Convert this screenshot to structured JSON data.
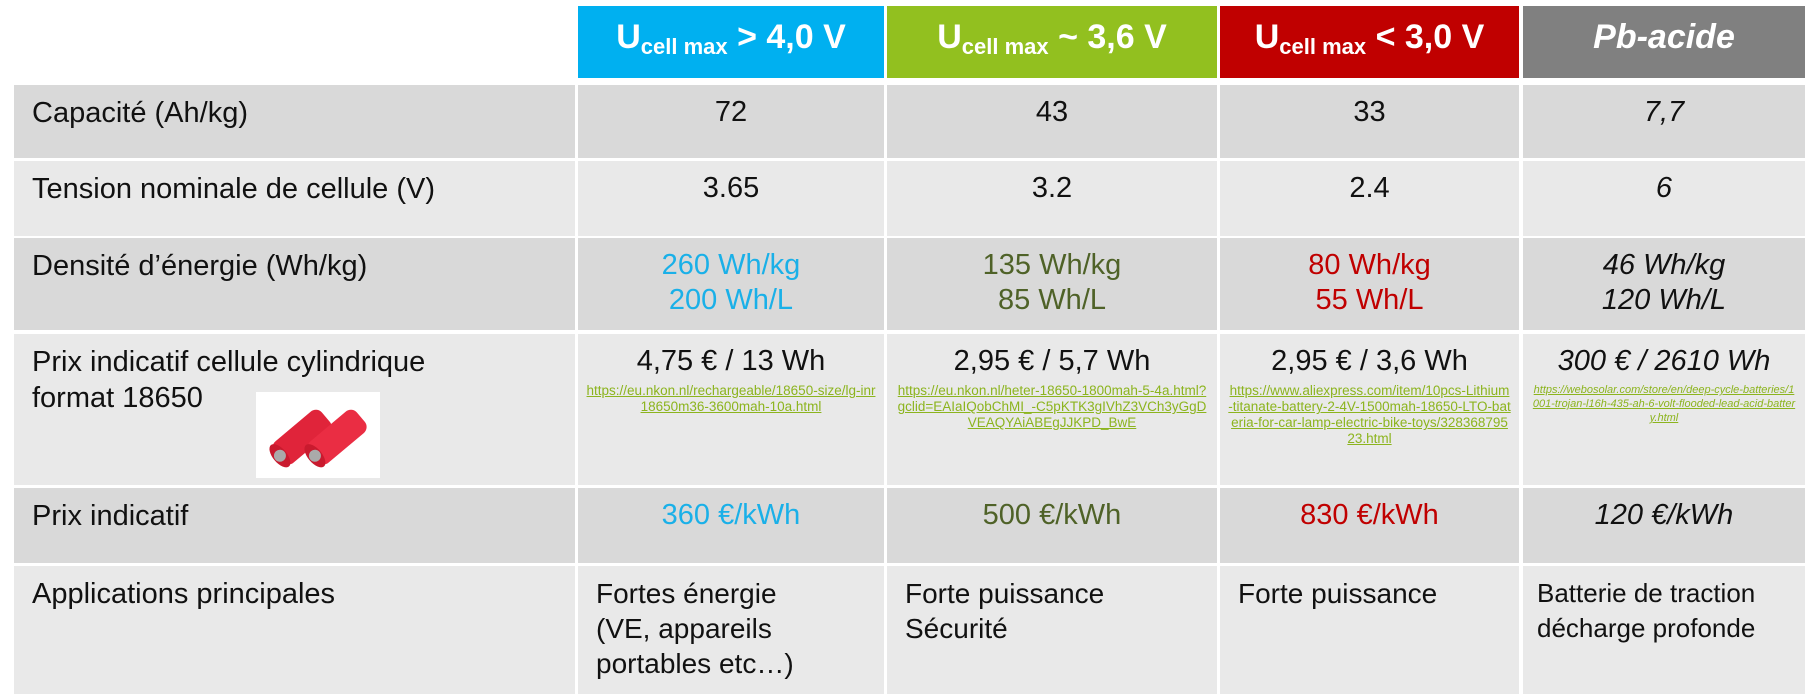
{
  "header": {
    "columns": [
      {
        "main": "U",
        "sub": "cell max",
        "rest": "> 4,0 V"
      },
      {
        "main": "U",
        "sub": "cell max",
        "rest": "~ 3,6 V"
      },
      {
        "main": "U",
        "sub": "cell max",
        "rest": "< 3,0 V"
      },
      {
        "text": "Pb-acide"
      }
    ]
  },
  "rows": [
    {
      "label": "Capacité (Ah/kg)",
      "cells": [
        [
          "72"
        ],
        [
          "43"
        ],
        [
          "33"
        ],
        [
          "7,7"
        ]
      ]
    },
    {
      "label": "Tension nominale de cellule (V)",
      "cells": [
        [
          "3.65"
        ],
        [
          "3.2"
        ],
        [
          "2.4"
        ],
        [
          "6"
        ]
      ]
    },
    {
      "label": "Densité d’énergie (Wh/kg)",
      "cells": [
        [
          "260 Wh/kg",
          "200 Wh/L"
        ],
        [
          "135 Wh/kg",
          "85 Wh/L"
        ],
        [
          "80 Wh/kg",
          "55 Wh/L"
        ],
        [
          "46 Wh/kg",
          "120 Wh/L"
        ]
      ]
    },
    {
      "label": [
        "Prix indicatif cellule cylindrique",
        "format 18650"
      ],
      "cells": [
        {
          "price": "4,75 €  / 13 Wh",
          "link": "https://eu.nkon.nl/rechargeable/18650-size/lg-inr18650m36-3600mah-10a.html"
        },
        {
          "price": "2,95 €  / 5,7 Wh",
          "link": "https://eu.nkon.nl/heter-18650-1800mah-5-4a.html?gclid=EAIaIQobChMI_-C5pKTK3gIVhZ3VCh3yGgDVEAQYAiABEgJJKPD_BwE"
        },
        {
          "price": "2,95 € / 3,6 Wh",
          "link": "https://www.aliexpress.com/item/10pcs-Lithium-titanate-battery-2-4V-1500mah-18650-LTO-bateria-for-car-lamp-electric-bike-toys/32836879523.html"
        },
        {
          "price": "300 € / 2610 Wh",
          "link": "https://webosolar.com/store/en/deep-cycle-batteries/1001-trojan-l16h-435-ah-6-volt-flooded-lead-acid-battery.html"
        }
      ]
    },
    {
      "label": "Prix indicatif",
      "cells": [
        [
          "360 €/kWh"
        ],
        [
          "500 €/kWh"
        ],
        [
          "830 €/kWh"
        ],
        [
          "120 €/kWh"
        ]
      ]
    },
    {
      "label": "Applications principales",
      "cells": [
        [
          "Fortes énergie",
          "(VE, appareils",
          "portables etc…)"
        ],
        [
          "Forte puissance",
          "Sécurité"
        ],
        [
          "Forte puissance"
        ],
        [
          "Batterie de traction",
          "décharge profonde"
        ]
      ]
    }
  ]
}
